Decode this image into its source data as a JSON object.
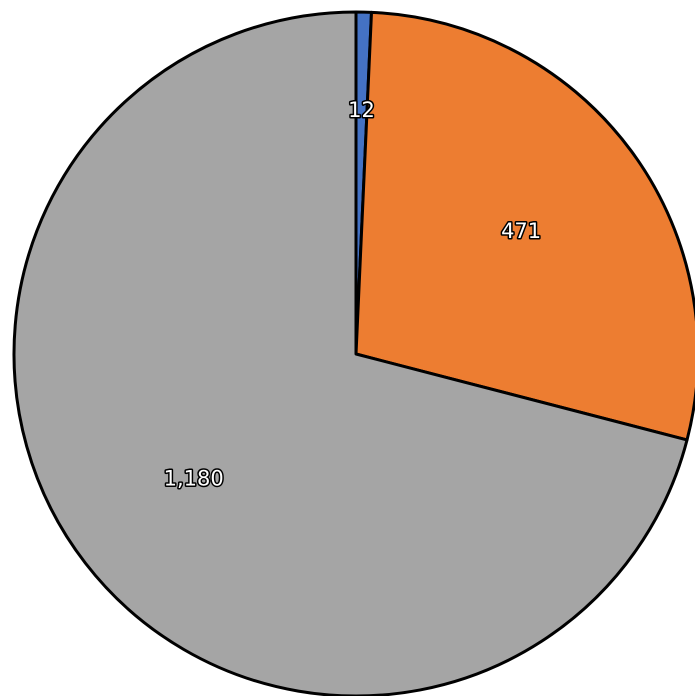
{
  "chart_data": {
    "type": "pie",
    "values": [
      12,
      471,
      1180
    ],
    "value_labels": [
      "12",
      "471",
      "1,180"
    ],
    "colors": [
      "#4472c4",
      "#ed7d31",
      "#a5a5a5"
    ]
  }
}
